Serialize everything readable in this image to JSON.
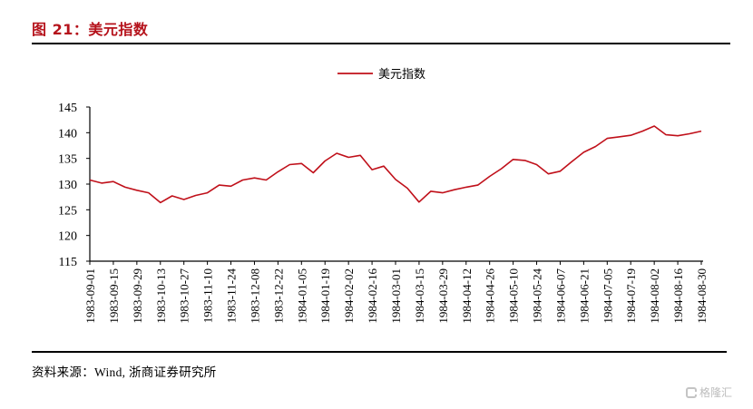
{
  "figure": {
    "title": "图 21：美元指数",
    "source": "资料来源：Wind, 浙商证券研究所",
    "watermark": "格隆汇"
  },
  "legend": {
    "label": "美元指数",
    "color": "#c0101a"
  },
  "chart_data": {
    "type": "line",
    "title": "美元指数",
    "xlabel": "",
    "ylabel": "",
    "ylim": [
      115,
      145
    ],
    "yticks": [
      115,
      120,
      125,
      130,
      135,
      140,
      145
    ],
    "grid": false,
    "legend_position": "top-center",
    "xtick_labels": [
      "1983-09-01",
      "1983-09-15",
      "1983-09-29",
      "1983-10-13",
      "1983-10-27",
      "1983-11-10",
      "1983-11-24",
      "1983-12-08",
      "1983-12-22",
      "1984-01-05",
      "1984-01-19",
      "1984-02-02",
      "1984-02-16",
      "1984-03-01",
      "1984-03-15",
      "1984-03-29",
      "1984-04-12",
      "1984-04-26",
      "1984-05-10",
      "1984-05-24",
      "1984-06-07",
      "1984-06-21",
      "1984-07-05",
      "1984-07-19",
      "1984-08-02",
      "1984-08-16",
      "1984-08-30"
    ],
    "series": [
      {
        "name": "美元指数",
        "color": "#c0101a",
        "x": [
          "1983-09-01",
          "1983-09-08",
          "1983-09-15",
          "1983-09-22",
          "1983-09-29",
          "1983-10-06",
          "1983-10-13",
          "1983-10-20",
          "1983-10-27",
          "1983-11-03",
          "1983-11-10",
          "1983-11-17",
          "1983-11-24",
          "1983-12-01",
          "1983-12-08",
          "1983-12-15",
          "1983-12-22",
          "1983-12-29",
          "1984-01-05",
          "1984-01-12",
          "1984-01-19",
          "1984-01-26",
          "1984-02-02",
          "1984-02-09",
          "1984-02-16",
          "1984-02-23",
          "1984-03-01",
          "1984-03-08",
          "1984-03-15",
          "1984-03-22",
          "1984-03-29",
          "1984-04-05",
          "1984-04-12",
          "1984-04-19",
          "1984-04-26",
          "1984-05-03",
          "1984-05-10",
          "1984-05-17",
          "1984-05-24",
          "1984-05-31",
          "1984-06-07",
          "1984-06-14",
          "1984-06-21",
          "1984-06-28",
          "1984-07-05",
          "1984-07-12",
          "1984-07-19",
          "1984-07-26",
          "1984-08-02",
          "1984-08-09",
          "1984-08-16",
          "1984-08-23",
          "1984-08-30"
        ],
        "values": [
          130.8,
          130.2,
          130.5,
          129.4,
          128.8,
          128.3,
          126.4,
          127.7,
          127.0,
          127.8,
          128.3,
          129.8,
          129.6,
          130.8,
          131.2,
          130.8,
          132.4,
          133.8,
          134.0,
          132.2,
          134.5,
          136.0,
          135.2,
          135.6,
          132.8,
          133.5,
          130.9,
          129.2,
          126.5,
          128.6,
          128.3,
          128.9,
          129.4,
          129.8,
          131.5,
          133.0,
          134.8,
          134.6,
          133.8,
          132.0,
          132.5,
          134.4,
          136.2,
          137.3,
          138.9,
          139.2,
          139.5,
          140.3,
          141.3,
          139.6,
          139.4,
          139.8,
          140.3
        ]
      }
    ]
  }
}
